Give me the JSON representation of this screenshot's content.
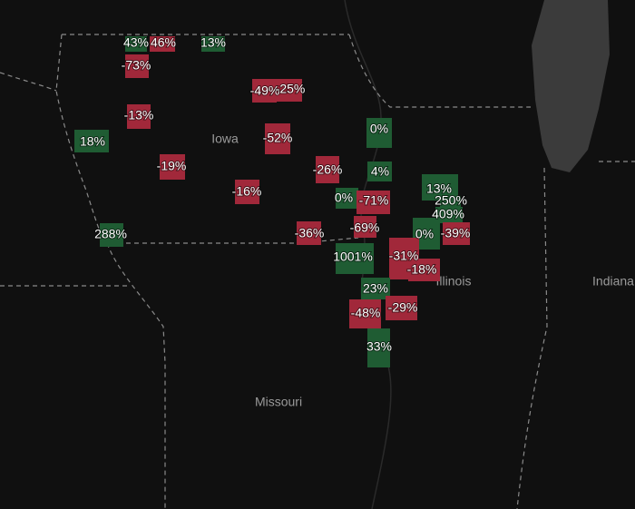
{
  "states": [
    "Iowa",
    "Illinois",
    "Missouri",
    "Indiana"
  ],
  "regions": [
    {
      "label": "43%",
      "color": "#1f5c33"
    },
    {
      "label": "46%",
      "color": "#a1283a"
    },
    {
      "label": "13%",
      "color": "#1f5c33"
    },
    {
      "label": "-73%",
      "color": "#a1283a"
    },
    {
      "label": "-49%",
      "color": "#a1283a"
    },
    {
      "label": "-25%",
      "color": "#a1283a"
    },
    {
      "label": "-13%",
      "color": "#a1283a"
    },
    {
      "label": "18%",
      "color": "#1f5c33"
    },
    {
      "label": "-52%",
      "color": "#a1283a"
    },
    {
      "label": "0%",
      "color": "#1f5c33"
    },
    {
      "label": "-19%",
      "color": "#a1283a"
    },
    {
      "label": "-26%",
      "color": "#a1283a"
    },
    {
      "label": "4%",
      "color": "#1f5c33"
    },
    {
      "label": "-16%",
      "color": "#a1283a"
    },
    {
      "label": "0%",
      "color": "#1f5c33"
    },
    {
      "label": "-71%",
      "color": "#a1283a"
    },
    {
      "label": "13%",
      "color": "#1f5c33"
    },
    {
      "label": "250%",
      "color": "#1f5c33"
    },
    {
      "label": "409%",
      "color": "#1f5c33"
    },
    {
      "label": "-69%",
      "color": "#a1283a"
    },
    {
      "label": "-36%",
      "color": "#a1283a"
    },
    {
      "label": "288%",
      "color": "#1f5c33"
    },
    {
      "label": "0%",
      "color": "#1f5c33"
    },
    {
      "label": "-39%",
      "color": "#a1283a"
    },
    {
      "label": "1001%",
      "color": "#1f5c33"
    },
    {
      "label": "-31%",
      "color": "#a1283a"
    },
    {
      "label": "-18%",
      "color": "#a1283a"
    },
    {
      "label": "23%",
      "color": "#1f5c33"
    },
    {
      "label": "-48%",
      "color": "#a1283a"
    },
    {
      "label": "-29%",
      "color": "#a1283a"
    },
    {
      "label": "33%",
      "color": "#1f5c33"
    }
  ]
}
